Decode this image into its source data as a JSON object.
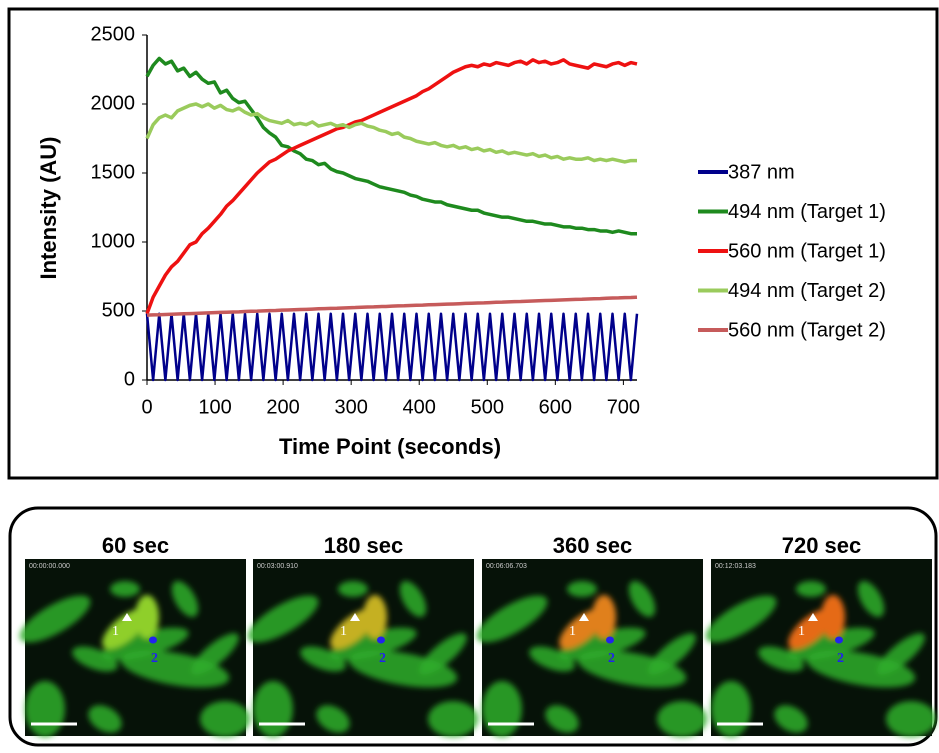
{
  "chart_data": {
    "type": "line",
    "xlabel": "Time Point (seconds)",
    "ylabel": "Intensity (AU)",
    "x": [
      0,
      9,
      18,
      27,
      36,
      45,
      54,
      63,
      72,
      81,
      90,
      99,
      108,
      117,
      126,
      135,
      144,
      153,
      162,
      171,
      180,
      189,
      198,
      207,
      216,
      225,
      234,
      243,
      252,
      261,
      270,
      279,
      288,
      297,
      306,
      315,
      324,
      333,
      342,
      351,
      360,
      369,
      378,
      387,
      396,
      405,
      414,
      423,
      432,
      441,
      450,
      459,
      468,
      477,
      486,
      495,
      504,
      513,
      522,
      531,
      540,
      549,
      558,
      567,
      576,
      585,
      594,
      603,
      612,
      621,
      630,
      639,
      648,
      657,
      666,
      675,
      684,
      693,
      702,
      711,
      720
    ],
    "series": [
      {
        "name": "387 nm",
        "color": "#00008b",
        "values": [
          480,
          0,
          480,
          0,
          480,
          0,
          480,
          0,
          480,
          0,
          480,
          0,
          480,
          0,
          480,
          0,
          480,
          0,
          480,
          0,
          480,
          0,
          480,
          0,
          480,
          0,
          480,
          0,
          480,
          0,
          480,
          0,
          480,
          0,
          480,
          0,
          480,
          0,
          480,
          0,
          480,
          0,
          480,
          0,
          480,
          0,
          480,
          0,
          480,
          0,
          480,
          0,
          480,
          0,
          480,
          0,
          480,
          0,
          480,
          0,
          480,
          0,
          480,
          0,
          480,
          0,
          480,
          0,
          480,
          0,
          480,
          0,
          480,
          0,
          480,
          0,
          480,
          0,
          480,
          0,
          480
        ]
      },
      {
        "name": "494 nm (Target 1)",
        "color": "#1e8a1e",
        "values": [
          2200,
          2280,
          2330,
          2290,
          2310,
          2240,
          2260,
          2200,
          2230,
          2180,
          2150,
          2160,
          2080,
          2100,
          2040,
          2010,
          2020,
          1960,
          1900,
          1830,
          1790,
          1760,
          1700,
          1690,
          1660,
          1640,
          1600,
          1590,
          1560,
          1570,
          1530,
          1510,
          1500,
          1480,
          1460,
          1450,
          1440,
          1420,
          1400,
          1390,
          1380,
          1370,
          1360,
          1340,
          1330,
          1310,
          1300,
          1290,
          1290,
          1270,
          1260,
          1250,
          1240,
          1230,
          1230,
          1210,
          1200,
          1190,
          1180,
          1180,
          1170,
          1160,
          1150,
          1150,
          1140,
          1130,
          1130,
          1120,
          1110,
          1110,
          1100,
          1100,
          1090,
          1090,
          1080,
          1080,
          1070,
          1080,
          1070,
          1060,
          1060
        ]
      },
      {
        "name": "560 nm (Target 1)",
        "color": "#ee1111",
        "values": [
          480,
          600,
          680,
          760,
          820,
          860,
          920,
          980,
          1000,
          1060,
          1100,
          1150,
          1200,
          1260,
          1300,
          1350,
          1400,
          1450,
          1500,
          1540,
          1580,
          1600,
          1630,
          1660,
          1680,
          1700,
          1720,
          1740,
          1760,
          1780,
          1800,
          1820,
          1830,
          1850,
          1870,
          1880,
          1900,
          1920,
          1940,
          1960,
          1980,
          2000,
          2020,
          2040,
          2060,
          2090,
          2110,
          2140,
          2170,
          2200,
          2230,
          2250,
          2270,
          2280,
          2270,
          2290,
          2280,
          2300,
          2290,
          2280,
          2300,
          2310,
          2290,
          2320,
          2300,
          2310,
          2290,
          2300,
          2320,
          2290,
          2280,
          2270,
          2260,
          2290,
          2280,
          2270,
          2290,
          2300,
          2280,
          2300,
          2290
        ]
      },
      {
        "name": "494 nm (Target 2)",
        "color": "#9acb5c",
        "values": [
          1750,
          1850,
          1900,
          1920,
          1900,
          1950,
          1970,
          1990,
          2000,
          1980,
          2000,
          1970,
          1990,
          1960,
          1950,
          1970,
          1940,
          1920,
          1930,
          1900,
          1880,
          1870,
          1860,
          1880,
          1850,
          1860,
          1850,
          1870,
          1840,
          1850,
          1860,
          1840,
          1850,
          1830,
          1850,
          1860,
          1840,
          1830,
          1810,
          1800,
          1780,
          1790,
          1760,
          1750,
          1730,
          1720,
          1710,
          1720,
          1700,
          1690,
          1700,
          1680,
          1690,
          1670,
          1680,
          1660,
          1670,
          1650,
          1660,
          1640,
          1650,
          1640,
          1630,
          1640,
          1620,
          1630,
          1610,
          1620,
          1600,
          1610,
          1600,
          1600,
          1610,
          1590,
          1600,
          1590,
          1600,
          1590,
          1580,
          1590,
          1590
        ]
      },
      {
        "name": "560 nm (Target 2)",
        "color": "#c65b5b",
        "values": [
          470,
          472,
          473,
          475,
          476,
          478,
          480,
          481,
          483,
          485,
          486,
          488,
          490,
          491,
          493,
          494,
          496,
          498,
          499,
          501,
          503,
          504,
          506,
          507,
          509,
          511,
          512,
          514,
          516,
          517,
          519,
          520,
          522,
          524,
          525,
          527,
          529,
          530,
          532,
          533,
          535,
          537,
          538,
          540,
          542,
          543,
          545,
          546,
          548,
          550,
          551,
          553,
          555,
          556,
          558,
          559,
          561,
          563,
          564,
          566,
          568,
          569,
          571,
          572,
          574,
          576,
          577,
          579,
          581,
          582,
          584,
          585,
          587,
          589,
          590,
          592,
          594,
          595,
          597,
          598,
          600
        ]
      }
    ],
    "xlim": [
      0,
      720
    ],
    "xticks": [
      0,
      100,
      200,
      300,
      400,
      500,
      600,
      700
    ],
    "ylim": [
      0,
      2500
    ],
    "yticks": [
      0,
      500,
      1000,
      1500,
      2000,
      2500
    ],
    "legend": "right"
  },
  "panels": [
    {
      "title": "60 sec",
      "timestamp": "00:00:00.000"
    },
    {
      "title": "180 sec",
      "timestamp": "00:03:00.910"
    },
    {
      "title": "360 sec",
      "timestamp": "00:06:06.703"
    },
    {
      "title": "720 sec",
      "timestamp": "00:12:03.183"
    }
  ],
  "markers": [
    "1",
    "2"
  ]
}
